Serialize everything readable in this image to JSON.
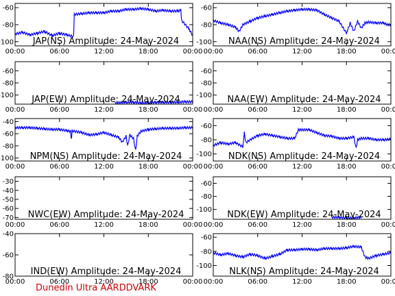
{
  "footer": "Dunedin Ultra AARDDVARK",
  "colors": {
    "series": "#0000ff",
    "footer": "#cc0000",
    "axis": "#000000"
  },
  "x_tick_labels": [
    "00:00",
    "06:00",
    "12:00",
    "18:00",
    "00:00"
  ],
  "chart_data": [
    {
      "type": "line",
      "title": "JAP(NS) Amplitude: 24-May-2024",
      "ylim": [
        -105,
        -55
      ],
      "yticks": [
        -60,
        -80,
        -100
      ],
      "xlim": [
        0,
        24
      ],
      "series": [
        {
          "x": [
            0,
            1,
            2,
            3,
            4,
            5,
            6,
            7,
            7.9,
            8.0,
            9,
            10,
            11,
            12,
            13,
            14,
            15,
            16,
            17,
            18,
            19,
            20,
            21,
            22,
            22.4,
            22.5,
            23.5,
            24
          ],
          "values": [
            -91,
            -89,
            -92,
            -90,
            -88,
            -93,
            -90,
            -92,
            -94,
            -68,
            -67,
            -66,
            -66,
            -66,
            -64,
            -64,
            -62,
            -62,
            -61,
            -62,
            -64,
            -63,
            -64,
            -64,
            -63,
            -75,
            -85,
            -93
          ]
        }
      ]
    },
    {
      "type": "line",
      "title": "NAA(NS) Amplitude: 24-May-2024",
      "ylim": [
        -105,
        -55
      ],
      "yticks": [
        -60,
        -80,
        -100
      ],
      "xlim": [
        0,
        24
      ],
      "series": [
        {
          "x": [
            0,
            1,
            2,
            3,
            3.5,
            4,
            5,
            6,
            7,
            8,
            9,
            10,
            11,
            12,
            13,
            14,
            15,
            16,
            17,
            18,
            18.5,
            19,
            19.5,
            20,
            20.5,
            21,
            22,
            23,
            23.5,
            24
          ],
          "values": [
            -75,
            -78,
            -80,
            -83,
            -88,
            -80,
            -76,
            -72,
            -70,
            -68,
            -66,
            -64,
            -63,
            -62,
            -62,
            -63,
            -68,
            -72,
            -76,
            -90,
            -78,
            -88,
            -76,
            -84,
            -78,
            -77,
            -78,
            -78,
            -80,
            -80
          ]
        }
      ]
    },
    {
      "type": "line",
      "title": "JAP(EW) Amplitude: 24-May-2024",
      "ylim": [
        -115,
        -45
      ],
      "yticks": [
        -60,
        -80,
        -100
      ],
      "xlim": [
        0,
        24
      ],
      "series": [
        {
          "x": [
            13.5,
            15,
            16,
            17,
            18,
            19,
            20,
            21,
            22,
            23,
            24
          ],
          "values": [
            -113,
            -112,
            -112,
            -113,
            -113,
            -112,
            -112,
            -112,
            -112,
            -111,
            -111
          ]
        }
      ]
    },
    {
      "type": "line",
      "title": "NAA(EW) Amplitude: 24-May-2024",
      "ylim": [
        -115,
        -45
      ],
      "yticks": [
        -60,
        -80,
        -100
      ],
      "xlim": [
        0,
        24
      ],
      "series": []
    },
    {
      "type": "line",
      "title": "NPM(NS) Amplitude: 24-May-2024",
      "ylim": [
        -105,
        -35
      ],
      "yticks": [
        -40,
        -60,
        -80,
        -100
      ],
      "xlim": [
        0,
        24
      ],
      "series": [
        {
          "x": [
            0,
            1,
            2,
            3,
            4,
            5,
            6,
            7,
            7.5,
            7.6,
            7.7,
            8,
            9,
            10,
            11,
            12,
            13,
            14,
            14.5,
            15,
            15.2,
            15.5,
            16,
            16.3,
            16.5,
            17,
            18,
            19,
            20,
            21,
            22,
            23,
            24
          ],
          "values": [
            -50,
            -50,
            -50,
            -51,
            -52,
            -53,
            -53,
            -55,
            -56,
            -70,
            -55,
            -56,
            -58,
            -62,
            -61,
            -58,
            -62,
            -66,
            -74,
            -64,
            -80,
            -62,
            -68,
            -88,
            -64,
            -56,
            -53,
            -52,
            -51,
            -51,
            -51,
            -50,
            -50
          ]
        }
      ]
    },
    {
      "type": "line",
      "title": "NDK(NS) Amplitude: 24-May-2024",
      "ylim": [
        -110,
        -50
      ],
      "yticks": [
        -60,
        -80,
        -100
      ],
      "xlim": [
        0,
        24
      ],
      "series": [
        {
          "x": [
            0,
            1,
            2,
            3,
            4,
            4.2,
            4.4,
            5,
            6,
            7,
            8,
            9,
            10,
            11,
            11.5,
            12,
            13,
            14,
            15,
            16,
            17,
            18,
            19,
            19.3,
            19.5,
            20,
            21,
            22,
            23,
            24
          ],
          "values": [
            -88,
            -84,
            -86,
            -84,
            -90,
            -70,
            -84,
            -80,
            -74,
            -72,
            -74,
            -76,
            -78,
            -78,
            -66,
            -66,
            -66,
            -70,
            -74,
            -75,
            -78,
            -78,
            -76,
            -92,
            -80,
            -78,
            -78,
            -80,
            -80,
            -79
          ]
        }
      ]
    },
    {
      "type": "line",
      "title": "NWC(EW) Amplitude: 24-May-2024",
      "ylim": [
        -72,
        -25
      ],
      "yticks": [
        -30,
        -40,
        -50,
        -60,
        -70
      ],
      "xlim": [
        0,
        24
      ],
      "series": []
    },
    {
      "type": "line",
      "title": "NDK(EW) Amplitude: 24-May-2024",
      "ylim": [
        -115,
        -50
      ],
      "yticks": [
        -60,
        -80,
        -100
      ],
      "xlim": [
        0,
        24
      ],
      "series": [
        {
          "x": [
            16,
            17,
            18,
            19,
            20
          ],
          "values": [
            -112,
            -112,
            -113,
            -113,
            -112
          ]
        }
      ]
    },
    {
      "type": "line",
      "title": "IND(EW) Amplitude: 24-May-2024",
      "ylim": [
        -80,
        -40
      ],
      "yticks": [
        -40,
        -60,
        -80
      ],
      "xlim": [
        0,
        24
      ],
      "series": []
    },
    {
      "type": "line",
      "title": "NLK(NS) Amplitude: 24-May-2024",
      "ylim": [
        -115,
        -55
      ],
      "yticks": [
        -60,
        -80,
        -100
      ],
      "xlim": [
        0,
        24
      ],
      "series": [
        {
          "x": [
            0,
            1,
            2,
            3,
            4,
            5,
            6,
            7,
            8,
            9,
            10,
            11,
            12,
            13,
            14,
            15,
            16,
            17,
            18,
            19,
            20,
            20.5,
            21,
            22,
            23,
            24
          ],
          "values": [
            -82,
            -85,
            -83,
            -86,
            -88,
            -84,
            -86,
            -90,
            -87,
            -84,
            -78,
            -78,
            -77,
            -77,
            -78,
            -76,
            -76,
            -76,
            -75,
            -73,
            -74,
            -88,
            -90,
            -86,
            -84,
            -82
          ]
        }
      ]
    }
  ]
}
